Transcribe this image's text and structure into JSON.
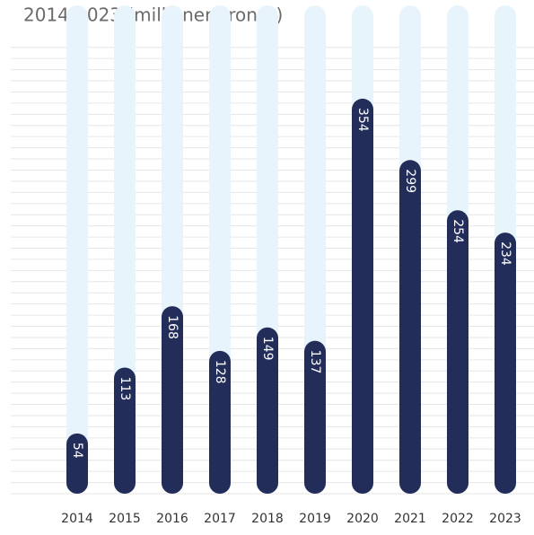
{
  "chart_data": {
    "type": "bar",
    "title": "2014-2023 (millioner kroner)",
    "categories": [
      "2014",
      "2015",
      "2016",
      "2017",
      "2018",
      "2019",
      "2020",
      "2021",
      "2022",
      "2023"
    ],
    "values": [
      54,
      113,
      168,
      128,
      149,
      137,
      354,
      299,
      254,
      234
    ],
    "color": "#232d5a",
    "ylim": [
      0,
      440
    ],
    "yticks": [
      0,
      10,
      20,
      30,
      40,
      50,
      60,
      70,
      80,
      90,
      100,
      110,
      120,
      130,
      140,
      150,
      160,
      170,
      180,
      190,
      200,
      210,
      220,
      230,
      240,
      250,
      260,
      270,
      280,
      290,
      300,
      310,
      320,
      330,
      340,
      350,
      360,
      370,
      380,
      390,
      400
    ],
    "grid": true
  }
}
